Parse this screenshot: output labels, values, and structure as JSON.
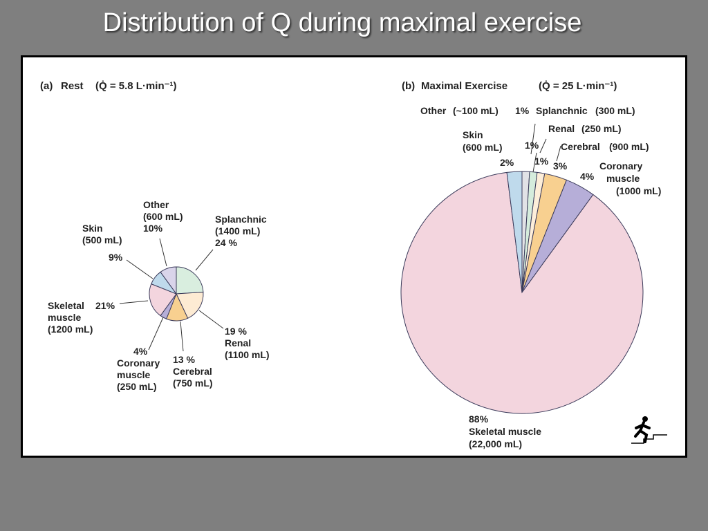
{
  "slide_title": "Distribution of Q during maximal exercise",
  "chart_data": [
    {
      "type": "pie",
      "panel_label": "(a)",
      "title": "Rest",
      "total_label": "(Q̇ = 5.8 L·min⁻¹)",
      "slices": [
        {
          "name": "Splanchnic",
          "amount": "(1400 mL)",
          "percent": 24,
          "percent_label": "24 %",
          "color": "#d9eedf"
        },
        {
          "name": "Renal",
          "amount": "(1100 mL)",
          "percent": 19,
          "percent_label": "19 %",
          "color": "#fdebd3"
        },
        {
          "name": "Cerebral",
          "amount": "(750 mL)",
          "percent": 13,
          "percent_label": "13 %",
          "color": "#f8d090"
        },
        {
          "name": "Coronary muscle",
          "amount": "(250 mL)",
          "percent": 4,
          "percent_label": "4%",
          "color": "#b6aed8"
        },
        {
          "name": "Skeletal muscle",
          "amount": "(1200 mL)",
          "percent": 21,
          "percent_label": "21%",
          "color": "#f3d5de"
        },
        {
          "name": "Skin",
          "amount": "(500 mL)",
          "percent": 9,
          "percent_label": "9%",
          "color": "#bfdaec"
        },
        {
          "name": "Other",
          "amount": "(600 mL)",
          "percent": 10,
          "percent_label": "10%",
          "color": "#d9d4ea"
        }
      ]
    },
    {
      "type": "pie",
      "panel_label": "(b)",
      "title": "Maximal Exercise",
      "total_label": "(Q̇ = 25 L·min⁻¹)",
      "slices": [
        {
          "name": "Other",
          "amount": "(~100 mL)",
          "percent": 1,
          "percent_label": "1%",
          "color": "#e1e2e6"
        },
        {
          "name": "Splanchnic",
          "amount": "(300 mL)",
          "percent": 1,
          "percent_label": "1%",
          "color": "#d5ecdc"
        },
        {
          "name": "Renal",
          "amount": "(250 mL)",
          "percent": 1,
          "percent_label": "1%",
          "color": "#fdeed9"
        },
        {
          "name": "Cerebral",
          "amount": "(900 mL)",
          "percent": 3,
          "percent_label": "3%",
          "color": "#f8d090"
        },
        {
          "name": "Coronary muscle",
          "amount": "(1000 mL)",
          "percent": 4,
          "percent_label": "4%",
          "color": "#b6aed8"
        },
        {
          "name": "Skeletal muscle",
          "amount": "(22,000 mL)",
          "percent": 88,
          "percent_label": "88%",
          "color": "#f3d5de"
        },
        {
          "name": "Skin",
          "amount": "(600 mL)",
          "percent": 2,
          "percent_label": "2%",
          "color": "#bfdaec"
        }
      ]
    }
  ]
}
